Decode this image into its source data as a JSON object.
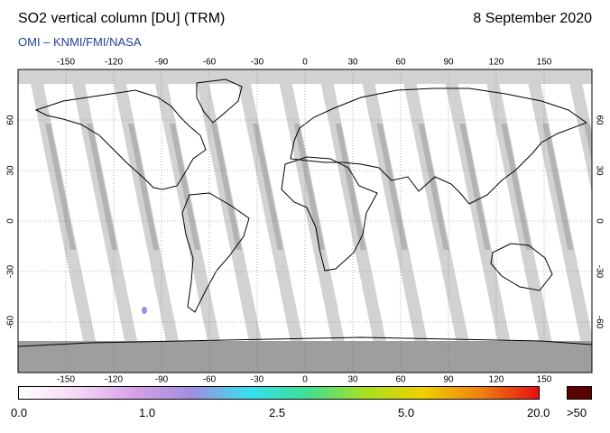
{
  "header": {
    "title": "SO2 vertical column [DU] (TRM)",
    "date": "8 September 2020",
    "credit": "OMI  –  KNMI/FMI/NASA"
  },
  "map": {
    "lon_ticks": [
      -150,
      -120,
      -90,
      -60,
      -30,
      0,
      30,
      60,
      90,
      120,
      150
    ],
    "lat_ticks": [
      60,
      30,
      0,
      -30,
      -60
    ],
    "lon_range": [
      -180,
      180
    ],
    "lat_range": [
      -90,
      90
    ],
    "land_color": "#ffffff",
    "coverage_gap_color": "#d2d2d2",
    "swath_overlap_color": "#999999",
    "gridlines": true
  },
  "colorbar": {
    "labels": [
      "0.0",
      "1.0",
      "2.5",
      "5.0",
      "20.0"
    ],
    "over_label": ">50",
    "colors": [
      "#ffffff",
      "#f4d8f4",
      "#d8a0e8",
      "#9f8fe0",
      "#36e0f0",
      "#40e090",
      "#a8e020",
      "#f0d000",
      "#f08010",
      "#e81010"
    ],
    "over_color": "#5a0000"
  }
}
